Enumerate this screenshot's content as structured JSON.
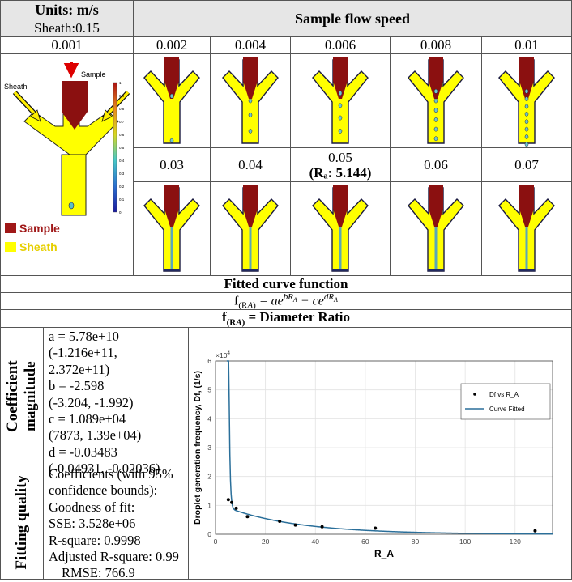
{
  "header": {
    "units": "Units: m/s",
    "sheath": "Sheath:0.15",
    "sample_flow_speed": "Sample flow speed"
  },
  "speeds_row1": [
    "0.001",
    "0.002",
    "0.004",
    "0.006",
    "0.008",
    "0.01"
  ],
  "speeds_row2": [
    "0.03",
    "0.04",
    "0.05",
    "0.06",
    "0.07"
  ],
  "ra_note": "(Rₐ: 5.144)",
  "first_panel": {
    "sheath_label": "Sheath",
    "sample_label": "Sample",
    "colorbar_ticks": [
      "1",
      "0.9",
      "0.8",
      "0.7",
      "0.6",
      "0.5",
      "0.4",
      "0.3",
      "0.2",
      "0.1",
      "0"
    ]
  },
  "legend": {
    "sample": "Sample",
    "sheath": "Sheath",
    "sample_color": "#a01818",
    "sheath_color": "#ffff00"
  },
  "colors": {
    "sample_fill": "#8b1010",
    "sheath_fill": "#ffff00",
    "header_bg": "#e6e6e6",
    "curve": "#2a6f9a"
  },
  "fitted": {
    "title": "Fitted curve function",
    "function_lhs": "f",
    "function_sub": "(R",
    "function_sub2": "A",
    "function_sub3": ")",
    "function_eq": " = ae",
    "function_exp1": "bR",
    "function_plus": " + ce",
    "function_exp2": "dR",
    "exp_sub": "A",
    "diameter_ratio": "= Diameter Ratio"
  },
  "coefficient": {
    "heading": "Coefficient magnitude",
    "lines": [
      "a = 5.78e+10",
      "(-1.216e+11,",
      "2.372e+11)",
      "b = -2.598",
      "(-3.204, -1.992)",
      "c = 1.089e+04",
      "(7873, 1.39e+04)",
      "d = -0.03483",
      "(-0.04931, -0.02036)"
    ]
  },
  "fitting": {
    "heading": "Fitting quality",
    "lines": [
      "Coefficients (with 95%",
      "confidence bounds):",
      "Goodness of fit:",
      "SSE: 3.528e+06",
      "R-square: 0.9998",
      "Adjusted R-square: 0.99",
      "RMSE: 766.9"
    ]
  },
  "chart_data": {
    "type": "scatter",
    "xlabel": "R_A",
    "ylabel": "Droplet generation frequency, Df, (1/s)",
    "y_multiplier": "×10",
    "y_multiplier_exp": "4",
    "xlim": [
      0,
      135
    ],
    "ylim": [
      0,
      60000
    ],
    "xticks": [
      0,
      20,
      40,
      60,
      80,
      100,
      120
    ],
    "yticks": [
      0,
      10000,
      20000,
      30000,
      40000,
      50000,
      60000
    ],
    "ytick_labels": [
      "0",
      "1",
      "2",
      "3",
      "4",
      "5",
      "6"
    ],
    "grid": true,
    "legend_position": "top-right",
    "series": [
      {
        "name": "Df vs R_A",
        "kind": "points",
        "x": [
          5.144,
          6.5,
          8.3,
          12.8,
          25.7,
          32,
          42.7,
          64,
          128
        ],
        "y": [
          12000,
          11000,
          9000,
          6100,
          4500,
          3200,
          2600,
          2100,
          1200
        ]
      },
      {
        "name": "Curve Fitted",
        "kind": "curve",
        "coefficients": {
          "a": 57800000000.0,
          "b": -2.598,
          "c": 10890,
          "d": -0.03483
        }
      }
    ]
  }
}
